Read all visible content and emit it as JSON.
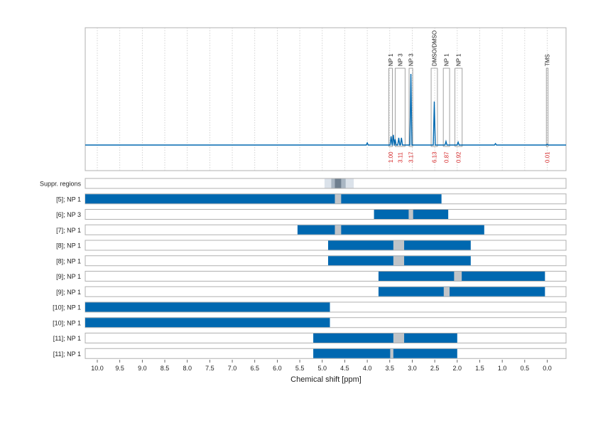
{
  "chart_data": {
    "type": "nmr-spectrum-with-region-bars",
    "x_axis": {
      "label": "Chemical shift [ppm]",
      "reversed": true,
      "range": [
        10.5,
        -0.45
      ],
      "ticks": [
        "10.0",
        "9.5",
        "9.0",
        "8.5",
        "8.0",
        "7.5",
        "7.0",
        "6.5",
        "6.0",
        "5.5",
        "5.0",
        "4.5",
        "4.0",
        "3.5",
        "3.0",
        "2.5",
        "2.0",
        "1.5",
        "1.0",
        "0.5",
        "0.0"
      ]
    },
    "spectrum": {
      "color": "#0068b0",
      "baseline": true,
      "peaks": [
        {
          "ppm": 4.0,
          "height": 0.03
        },
        {
          "ppm": 3.47,
          "height": 0.12
        },
        {
          "ppm": 3.42,
          "height": 0.14
        },
        {
          "ppm": 3.38,
          "height": 0.08
        },
        {
          "ppm": 3.3,
          "height": 0.1
        },
        {
          "ppm": 3.24,
          "height": 0.1
        },
        {
          "ppm": 3.03,
          "height": 0.98
        },
        {
          "ppm": 2.51,
          "height": 0.6
        },
        {
          "ppm": 2.25,
          "height": 0.05
        },
        {
          "ppm": 1.98,
          "height": 0.04
        },
        {
          "ppm": 1.15,
          "height": 0.02
        },
        {
          "ppm": 0.0,
          "height": 0.01
        }
      ]
    },
    "peak_annotations": [
      {
        "label": "NP 1",
        "from": 3.52,
        "to": 3.44,
        "integral": "1.00"
      },
      {
        "label": "NP 3",
        "from": 3.38,
        "to": 3.16,
        "integral": "3.11"
      },
      {
        "label": "NP 3",
        "from": 3.07,
        "to": 2.99,
        "integral": "3.17"
      },
      {
        "label": "DMSO/DMSO",
        "from": 2.58,
        "to": 2.44,
        "integral": "6.13"
      },
      {
        "label": "NP 1",
        "from": 2.31,
        "to": 2.17,
        "integral": "0.87"
      },
      {
        "label": "NP 1",
        "from": 2.05,
        "to": 1.89,
        "integral": "0.92"
      },
      {
        "label": "TMS",
        "from": 0.02,
        "to": -0.02,
        "integral": "0.01"
      }
    ],
    "rows": [
      {
        "label": "Suppr. regions",
        "type": "suppr",
        "bands": [
          [
            4.95,
            4.3
          ],
          [
            4.8,
            4.48
          ],
          [
            4.72,
            4.58
          ]
        ]
      },
      {
        "label": "[5]; NP 1",
        "bars": [
          [
            10.3,
            2.35
          ]
        ],
        "gap": [
          4.72,
          4.58
        ]
      },
      {
        "label": "[6]; NP 3",
        "bars": [
          [
            3.85,
            2.2
          ]
        ],
        "gap": [
          3.08,
          2.98
        ]
      },
      {
        "label": "[7]; NP 1",
        "bars": [
          [
            5.55,
            1.4
          ]
        ],
        "gap": [
          4.72,
          4.58
        ]
      },
      {
        "label": "[8]; NP 1",
        "bars": [
          [
            4.87,
            1.7
          ]
        ],
        "gap": [
          3.42,
          3.18
        ]
      },
      {
        "label": "[8]; NP 1",
        "bars": [
          [
            4.87,
            1.7
          ]
        ],
        "gap": [
          3.42,
          3.18
        ]
      },
      {
        "label": "[9]; NP 1",
        "bars": [
          [
            3.75,
            0.05
          ]
        ],
        "gap": [
          2.07,
          1.9
        ]
      },
      {
        "label": "[9]; NP 1",
        "bars": [
          [
            3.75,
            0.05
          ]
        ],
        "gap": [
          2.3,
          2.17
        ]
      },
      {
        "label": "[10]; NP 1",
        "bars": [
          [
            10.3,
            4.83
          ]
        ],
        "gap": null
      },
      {
        "label": "[10]; NP 1",
        "bars": [
          [
            10.3,
            4.83
          ]
        ],
        "gap": null
      },
      {
        "label": "[11]; NP 1",
        "bars": [
          [
            5.2,
            2.0
          ]
        ],
        "gap": [
          3.42,
          3.18
        ]
      },
      {
        "label": "[11]; NP 1",
        "bars": [
          [
            5.2,
            2.0
          ]
        ],
        "gap": [
          3.49,
          3.42
        ]
      }
    ],
    "colors": {
      "bar": "#0068b0",
      "gap": "#c0c4c8",
      "integral": "#d62728",
      "suppr_light": "#dbe2ea",
      "suppr_mid": "#a9b6c3",
      "suppr_dark": "#6f7f8f",
      "frame": "#b0b0b0",
      "grid": "#c8c8c8"
    }
  }
}
